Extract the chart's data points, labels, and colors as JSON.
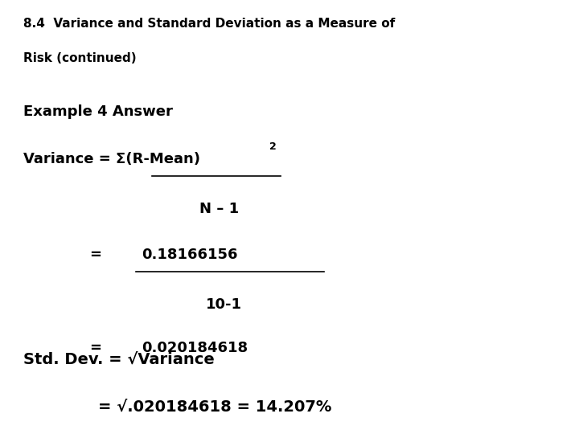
{
  "bg_color": "#ffffff",
  "title_line1": "8.4  Variance and Standard Deviation as a Measure of",
  "title_line2": "Risk (continued)",
  "example_label": "Example 4 Answer",
  "variance_label": "Variance = Σ(R-Mean)",
  "variance_superscript": "2",
  "n_minus_1": "N – 1",
  "equals1": "=",
  "numerator": "0.18166156",
  "denominator": "10-1",
  "equals2": "=",
  "result1": "0.020184618",
  "stddev_line1": "Std. Dev. = √Variance",
  "stddev_line2": "= √.020184618 = 14.207%",
  "font_size_title": 11,
  "font_size_body": 13,
  "font_size_stddev": 14,
  "text_color": "#000000"
}
